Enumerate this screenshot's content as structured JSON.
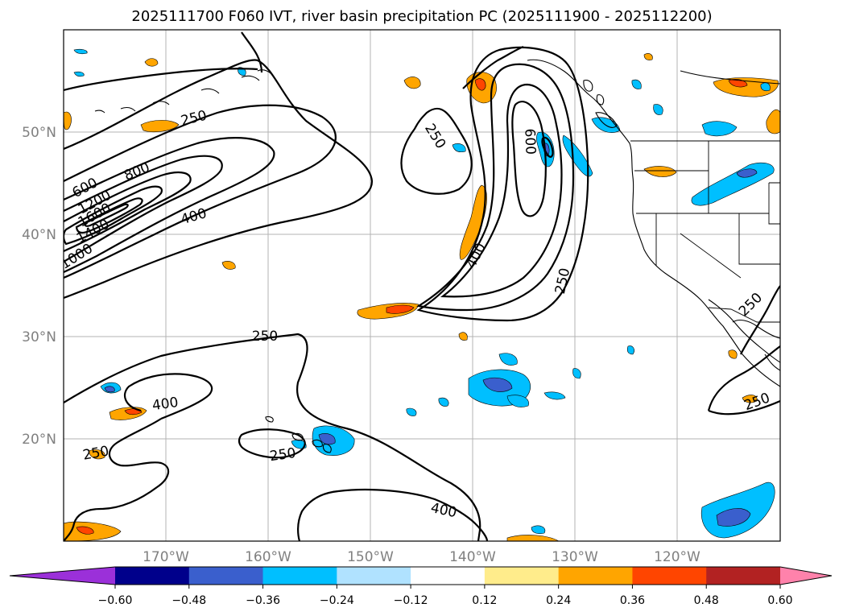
{
  "title": "2025111700 F060 IVT, river basin precipitation PC (2025111900 - 2025112200)",
  "map": {
    "lon_range": [
      -180,
      -110
    ],
    "lat_range": [
      10,
      60
    ],
    "lat_labels": [
      "50°N",
      "40°N",
      "30°N",
      "20°N"
    ],
    "lon_labels": [
      "170°W",
      "160°W",
      "150°W",
      "140°W",
      "130°W",
      "120°W"
    ],
    "ivt_contour_labels": [
      "250",
      "600",
      "800",
      "1200",
      "1600",
      "1400",
      "1000",
      "400",
      "250",
      "600",
      "400",
      "250",
      "250",
      "400",
      "250",
      "250",
      "400",
      "250",
      "250"
    ]
  },
  "colorbar": {
    "ticks": [
      "−0.60",
      "−0.48",
      "−0.36",
      "−0.24",
      "−0.12",
      "0.12",
      "0.24",
      "0.36",
      "0.48",
      "0.60"
    ],
    "colors": [
      "#9b30d9",
      "#00008b",
      "#3a5fcd",
      "#00bfff",
      "#b0e2ff",
      "#ffffff",
      "#ffec8b",
      "#ffa500",
      "#ff4500",
      "#b22222",
      "#ff82ab"
    ]
  }
}
